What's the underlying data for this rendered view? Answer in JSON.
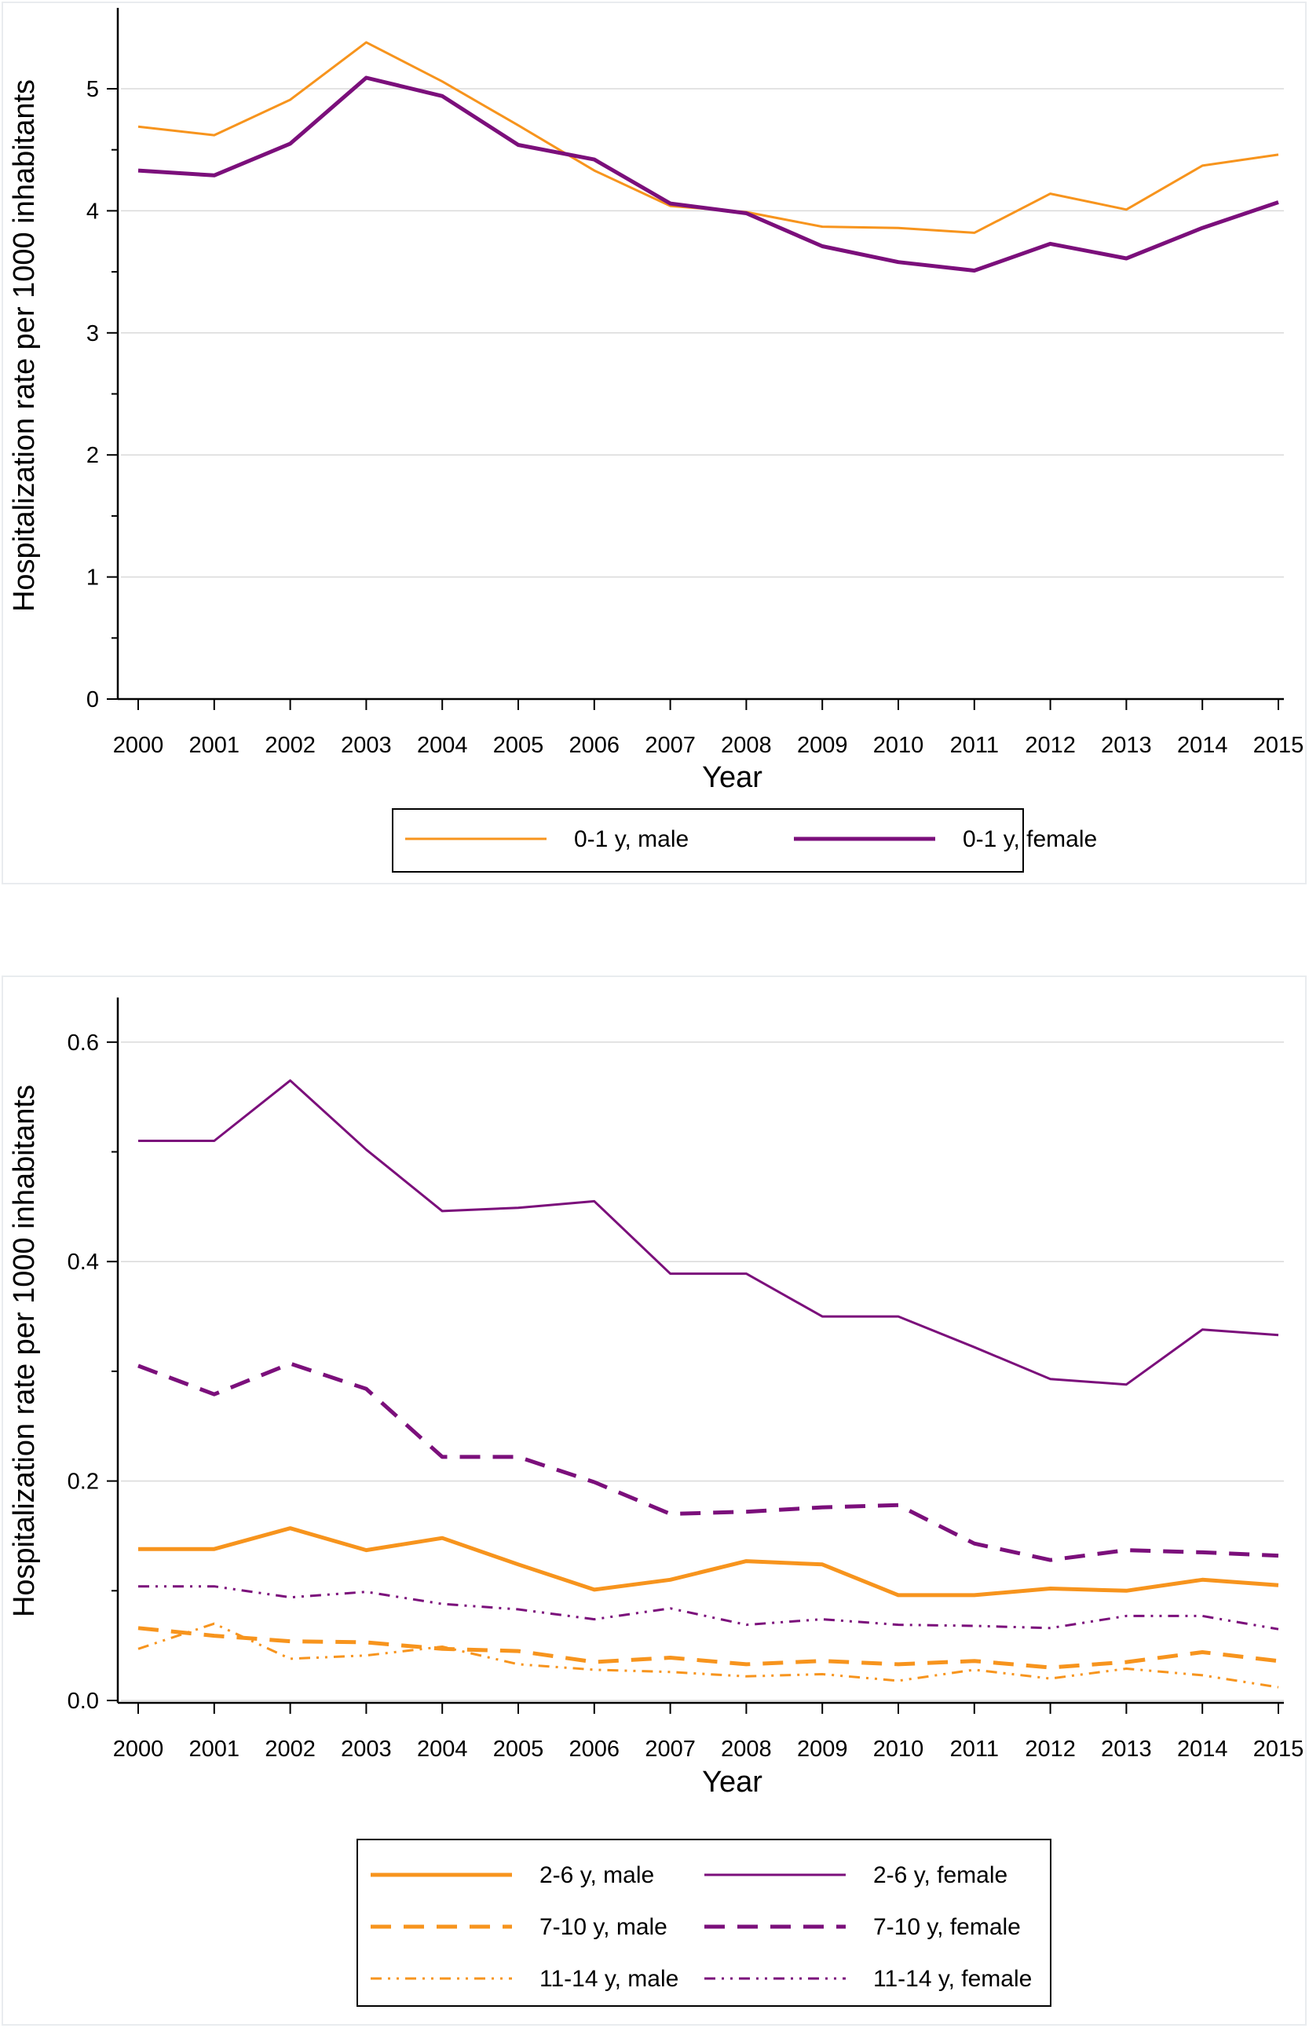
{
  "chart_data": [
    {
      "type": "line",
      "xlabel": "Year",
      "ylabel": "Hospitalization rate per 1000 inhabitants",
      "x": [
        "2000",
        "2001",
        "2002",
        "2003",
        "2004",
        "2005",
        "2006",
        "2007",
        "2008",
        "2009",
        "2010",
        "2011",
        "2012",
        "2013",
        "2014",
        "2015"
      ],
      "ylim": [
        0,
        5.5
      ],
      "yticks": [
        "0",
        "1",
        "2",
        "3",
        "4",
        "5"
      ],
      "grid": true,
      "legend_position": "bottom",
      "series": [
        {
          "name": "0-1 y, male",
          "color": "#f7941d",
          "dash": "solid",
          "weight": "thin",
          "values": [
            4.69,
            4.62,
            4.91,
            5.38,
            5.06,
            4.7,
            4.33,
            4.04,
            3.99,
            3.87,
            3.86,
            3.82,
            4.14,
            4.01,
            4.37,
            4.46
          ]
        },
        {
          "name": "0-1 y, female",
          "color": "#7b0f7b",
          "dash": "solid",
          "weight": "thick",
          "values": [
            4.33,
            4.29,
            4.55,
            5.09,
            4.94,
            4.54,
            4.42,
            4.06,
            3.98,
            3.71,
            3.58,
            3.51,
            3.73,
            3.61,
            3.86,
            4.07
          ]
        }
      ]
    },
    {
      "type": "line",
      "xlabel": "Year",
      "ylabel": "Hospitalization rate per 1000 inhabitants",
      "x": [
        "2000",
        "2001",
        "2002",
        "2003",
        "2004",
        "2005",
        "2006",
        "2007",
        "2008",
        "2009",
        "2010",
        "2011",
        "2012",
        "2013",
        "2014",
        "2015"
      ],
      "ylim": [
        0,
        0.6
      ],
      "yticks": [
        "0.0",
        "0.2",
        "0.4",
        "0.6"
      ],
      "grid": true,
      "legend_position": "bottom",
      "series": [
        {
          "name": "2-6 y, male",
          "color": "#f7941d",
          "dash": "solid",
          "weight": "thick",
          "values": [
            0.138,
            0.138,
            0.157,
            0.137,
            0.148,
            0.124,
            0.101,
            0.11,
            0.127,
            0.124,
            0.096,
            0.096,
            0.102,
            0.1,
            0.11,
            0.105
          ]
        },
        {
          "name": "2-6 y, female",
          "color": "#7b0f7b",
          "dash": "solid",
          "weight": "thin",
          "values": [
            0.51,
            0.51,
            0.565,
            0.502,
            0.446,
            0.449,
            0.455,
            0.389,
            0.389,
            0.35,
            0.35,
            0.322,
            0.293,
            0.288,
            0.338,
            0.333
          ]
        },
        {
          "name": "7-10 y, male",
          "color": "#f7941d",
          "dash": "dash",
          "weight": "thick",
          "values": [
            0.066,
            0.059,
            0.054,
            0.053,
            0.047,
            0.045,
            0.035,
            0.039,
            0.033,
            0.036,
            0.033,
            0.036,
            0.03,
            0.035,
            0.044,
            0.036
          ]
        },
        {
          "name": "7-10 y, female",
          "color": "#7b0f7b",
          "dash": "dash",
          "weight": "thick",
          "values": [
            0.305,
            0.279,
            0.307,
            0.284,
            0.222,
            0.222,
            0.199,
            0.17,
            0.172,
            0.176,
            0.178,
            0.143,
            0.128,
            0.137,
            0.135,
            0.132
          ]
        },
        {
          "name": "11-14 y, male",
          "color": "#f7941d",
          "dash": "dashdot",
          "weight": "thin",
          "values": [
            0.047,
            0.07,
            0.038,
            0.041,
            0.049,
            0.033,
            0.028,
            0.026,
            0.022,
            0.024,
            0.018,
            0.028,
            0.02,
            0.029,
            0.023,
            0.012
          ]
        },
        {
          "name": "11-14 y, female",
          "color": "#7b0f7b",
          "dash": "dashdot",
          "weight": "thin",
          "values": [
            0.104,
            0.104,
            0.094,
            0.099,
            0.088,
            0.083,
            0.074,
            0.084,
            0.069,
            0.074,
            0.069,
            0.068,
            0.066,
            0.077,
            0.077,
            0.065
          ]
        }
      ]
    }
  ]
}
